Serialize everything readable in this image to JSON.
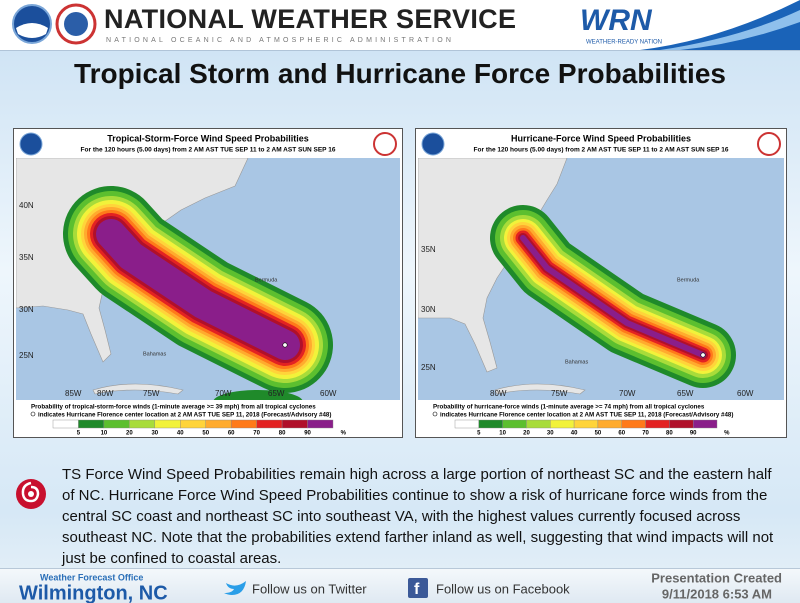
{
  "header": {
    "agency": "NATIONAL WEATHER SERVICE",
    "department": "NATIONAL OCEANIC AND ATMOSPHERIC ADMINISTRATION",
    "wrn_logo": "WRN",
    "wrn_tagline": "WEATHER-READY NATION"
  },
  "title": "Tropical Storm and Hurricane Force Probabilities",
  "maps": [
    {
      "title": "Tropical-Storm-Force Wind Speed Probabilities",
      "subtitle": "For the 120 hours (5.00 days) from 2 AM AST TUE SEP 11 to 2 AM AST SUN SEP 16",
      "lat_labels": [
        "40N",
        "35N",
        "30N",
        "25N"
      ],
      "lon_labels": [
        "85W",
        "80W",
        "75W",
        "70W",
        "65W",
        "60W"
      ],
      "place_labels": [
        "Bermuda",
        "Bahamas"
      ],
      "footer_line1": "Probability of tropical-storm-force winds (1-minute average >= 39 mph) from all tropical cyclones",
      "footer_line2": "indicates Hurricane Florence center location at 2 AM AST TUE SEP 11, 2018 (Forecast/Advisory #48)",
      "legend": [
        5,
        10,
        20,
        30,
        40,
        50,
        60,
        70,
        80,
        90
      ],
      "legend_unit": "%"
    },
    {
      "title": "Hurricane-Force Wind Speed Probabilities",
      "subtitle": "For the 120 hours (5.00 days) from 2 AM AST TUE SEP 11 to 2 AM AST SUN SEP 16",
      "lat_labels": [
        "35N",
        "30N",
        "25N"
      ],
      "lon_labels": [
        "80W",
        "75W",
        "70W",
        "65W",
        "60W"
      ],
      "place_labels": [
        "Bermuda",
        "Bahamas"
      ],
      "footer_line1": "Probability of hurricane-force winds (1-minute average >= 74 mph) from all tropical cyclones",
      "footer_line2": "indicates Hurricane Florence center location at 2 AM AST TUE SEP 11, 2018 (Forecast/Advisory #48)",
      "legend": [
        5,
        10,
        20,
        30,
        40,
        50,
        60,
        70,
        80,
        90
      ],
      "legend_unit": "%"
    }
  ],
  "body": "TS Force Wind Speed Probabilities remain high across a large portion of northeast SC and the eastern half of NC. Hurricane Force Wind Speed Probabilities continue to show a risk of hurricane force winds from the central SC coast and northeast SC into southeast VA, with the highest values currently focused across southeast NC. Note that the probabilities extend farther inland as well, suggesting that wind impacts will not just be confined to coastal areas.",
  "footer": {
    "office_label": "Weather Forecast Office",
    "office": "Wilmington, NC",
    "twitter": "Follow us on Twitter",
    "facebook": "Follow us on Facebook",
    "created_label": "Presentation Created",
    "created": "9/11/2018 6:53 AM"
  }
}
